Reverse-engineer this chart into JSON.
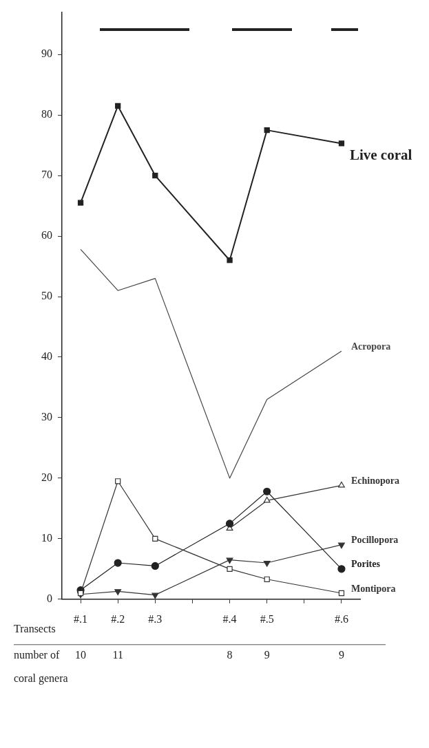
{
  "chart_data": {
    "type": "line",
    "xlabel": "Transects",
    "categories": [
      "#.1",
      "#.2",
      "#.3",
      null,
      "#.4",
      "#.5",
      null,
      "#.6"
    ],
    "ylim": [
      0,
      97
    ],
    "yticks": [
      0,
      10,
      20,
      30,
      40,
      50,
      60,
      70,
      80,
      90
    ],
    "grid": false,
    "legend": false,
    "series": [
      {
        "name": "Live coral",
        "color": "#222222",
        "marker": "square",
        "values": [
          65.5,
          81.5,
          70,
          null,
          56,
          77.5,
          null,
          75.3
        ]
      },
      {
        "name": "Acropora",
        "color": "#444444",
        "marker": "none",
        "values": [
          57.8,
          51,
          53,
          null,
          20,
          33,
          null,
          41
        ]
      },
      {
        "name": "Echinopora",
        "color": "#333333",
        "marker": "triangle",
        "values": [
          null,
          null,
          null,
          null,
          11.7,
          16.3,
          null,
          18.8
        ]
      },
      {
        "name": "Pocillopora",
        "color": "#333333",
        "marker": "triangle-down",
        "values": [
          0.8,
          1.3,
          0.7,
          null,
          6.5,
          6,
          null,
          9
        ]
      },
      {
        "name": "Porites",
        "color": "#222222",
        "marker": "circle",
        "values": [
          1.5,
          6,
          5.5,
          null,
          12.5,
          17.8,
          null,
          5
        ]
      },
      {
        "name": "Montipora",
        "color": "#333333",
        "marker": "square-open",
        "values": [
          1,
          19.5,
          10,
          null,
          5,
          3.3,
          null,
          1
        ]
      }
    ],
    "annotations": [
      "number of coral genera",
      "10",
      "11",
      "8",
      "9",
      "9"
    ]
  }
}
